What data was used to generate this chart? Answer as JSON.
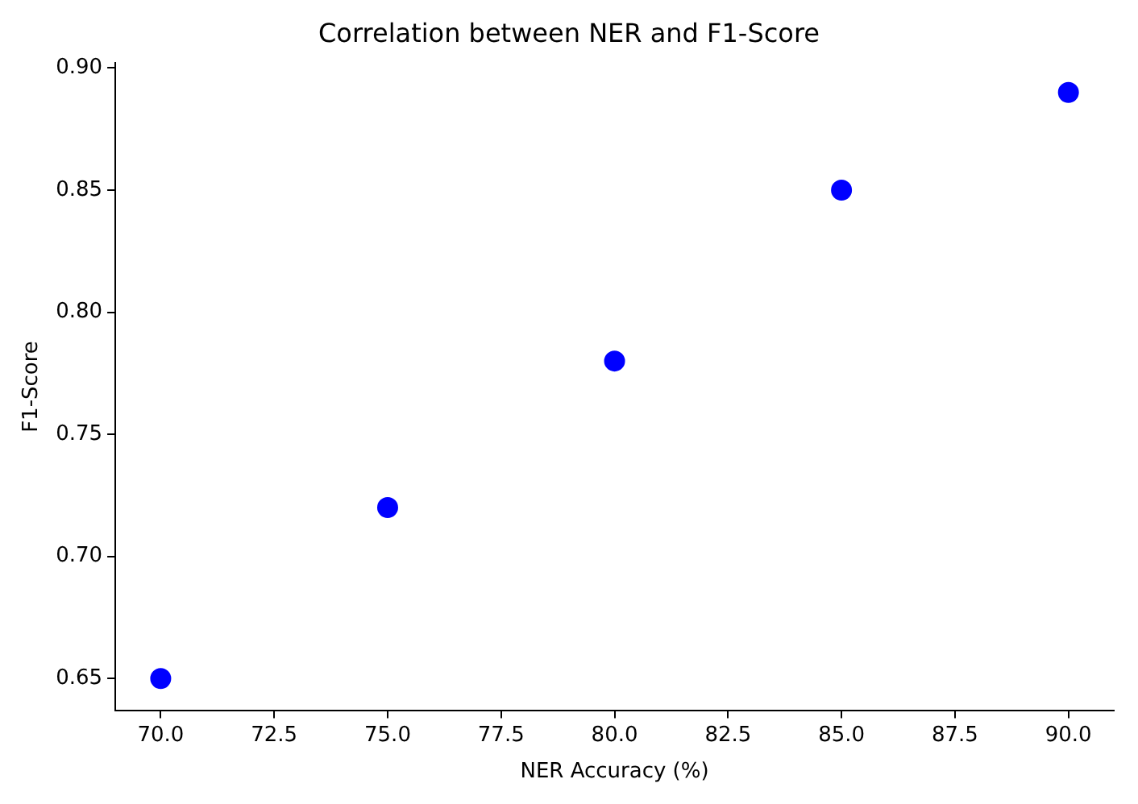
{
  "chart_data": {
    "type": "scatter",
    "title": "Correlation between NER and F1-Score",
    "xlabel": "NER Accuracy (%)",
    "ylabel": "F1-Score",
    "x": [
      70,
      75,
      80,
      85,
      90
    ],
    "series": [
      {
        "color": "#0000ff",
        "values": [
          0.65,
          0.72,
          0.78,
          0.85,
          0.89
        ]
      }
    ],
    "xlim": [
      69,
      91
    ],
    "ylim": [
      0.637,
      0.902
    ],
    "xticks": [
      {
        "value": 70,
        "label": "70.0"
      },
      {
        "value": 72.5,
        "label": "72.5"
      },
      {
        "value": 75,
        "label": "75.0"
      },
      {
        "value": 77.5,
        "label": "77.5"
      },
      {
        "value": 80,
        "label": "80.0"
      },
      {
        "value": 82.5,
        "label": "82.5"
      },
      {
        "value": 85,
        "label": "85.0"
      },
      {
        "value": 87.5,
        "label": "87.5"
      },
      {
        "value": 90,
        "label": "90.0"
      }
    ],
    "yticks": [
      {
        "value": 0.65,
        "label": "0.65"
      },
      {
        "value": 0.7,
        "label": "0.70"
      },
      {
        "value": 0.75,
        "label": "0.75"
      },
      {
        "value": 0.8,
        "label": "0.80"
      },
      {
        "value": 0.85,
        "label": "0.85"
      },
      {
        "value": 0.9,
        "label": "0.90"
      }
    ],
    "grid": false,
    "legend": false,
    "marker": "circle"
  }
}
